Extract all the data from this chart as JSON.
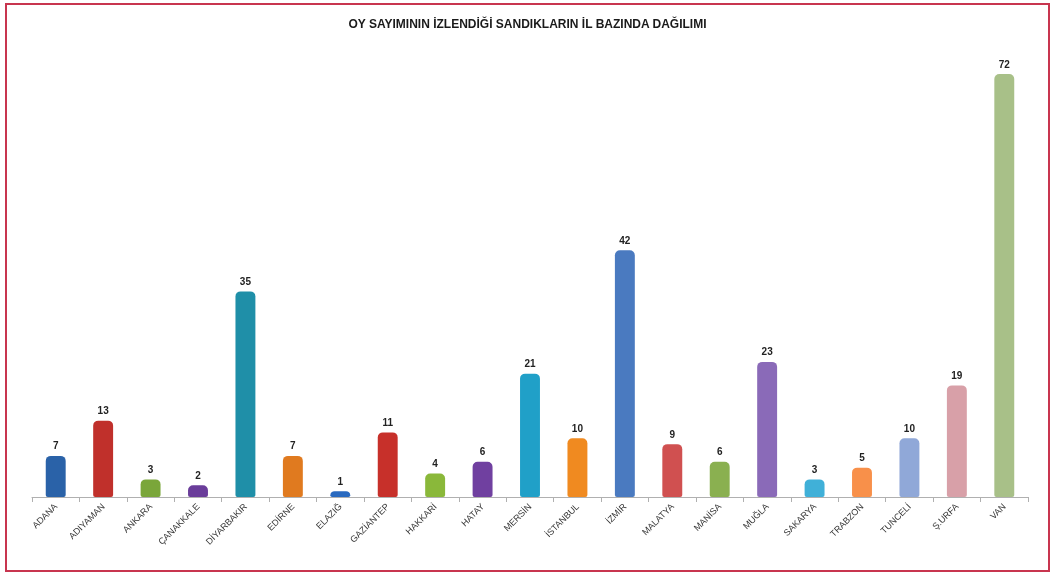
{
  "chart_data": {
    "type": "bar",
    "title": "OY SAYIMININ İZLENDİĞİ SANDIKLARIN İL BAZINDA DAĞILIMI",
    "categories": [
      "ADANA",
      "ADIYAMAN",
      "ANKARA",
      "ÇANAKKALE",
      "DİYARBAKIR",
      "EDİRNE",
      "ELAZIĞ",
      "GAZİANTEP",
      "HAKKARİ",
      "HATAY",
      "MERSİN",
      "İSTANBUL",
      "İZMİR",
      "MALATYA",
      "MANİSA",
      "MUĞLA",
      "SAKARYA",
      "TRABZON",
      "TUNCELİ",
      "Ş.URFA",
      "VAN"
    ],
    "values": [
      7,
      13,
      3,
      2,
      35,
      7,
      1,
      11,
      4,
      6,
      21,
      10,
      42,
      9,
      6,
      23,
      3,
      5,
      10,
      19,
      72
    ],
    "colors": [
      "#2a62a8",
      "#c0302b",
      "#7aa63a",
      "#6a3d9a",
      "#1f8fa8",
      "#e07a1f",
      "#2a6ac0",
      "#c7302a",
      "#8ab83a",
      "#7040a0",
      "#20a0c8",
      "#f08a20",
      "#4a7ac0",
      "#d05050",
      "#8ab050",
      "#8a6ab8",
      "#40b0d8",
      "#f8904a",
      "#90a8d8",
      "#d8a0a8",
      "#a8c088"
    ],
    "data_labels": true
  }
}
